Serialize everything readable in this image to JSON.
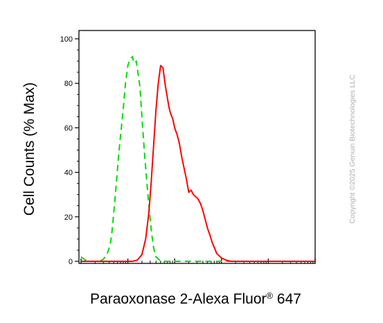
{
  "chart_data": {
    "type": "line",
    "ylabel": "Cell Counts (% Max)",
    "xlabel_main": "Paraoxonase 2-Alexa Fluor",
    "xlabel_sup": "®",
    "xlabel_tail": " 647",
    "ylim": [
      0,
      105
    ],
    "xlim_decades": [
      0,
      5
    ],
    "x_scale": "log (unlabeled)",
    "y_ticks": [
      "0",
      "20",
      "40",
      "60",
      "80",
      "100"
    ],
    "grid": false,
    "series": [
      {
        "color": "#00dd00",
        "style": "dashed",
        "x": [
          0.0,
          0.1,
          0.15,
          0.25,
          0.32,
          0.4,
          0.48,
          0.55,
          0.62,
          0.66,
          0.7,
          0.75,
          0.8,
          0.85,
          0.9,
          0.95,
          1.0,
          1.05,
          1.1,
          1.12,
          1.15,
          1.18,
          1.22,
          1.26,
          1.3,
          1.35,
          1.4,
          1.45,
          1.5,
          1.55,
          1.6,
          1.68,
          1.75,
          1.85,
          2.0,
          2.5,
          5.0
        ],
        "y": [
          2,
          0.5,
          0,
          0,
          0,
          0,
          1,
          3,
          7,
          13,
          22,
          34,
          47,
          58,
          68,
          80,
          88,
          91,
          92,
          90,
          89,
          90,
          84,
          78,
          65,
          50,
          37,
          25,
          14,
          6,
          2,
          0.5,
          0,
          0,
          0,
          0,
          0
        ]
      },
      {
        "color": "#ff0000",
        "style": "solid",
        "x": [
          0.0,
          0.8,
          1.1,
          1.2,
          1.3,
          1.38,
          1.45,
          1.5,
          1.55,
          1.6,
          1.65,
          1.7,
          1.75,
          1.8,
          1.84,
          1.88,
          1.92,
          1.96,
          2.0,
          2.05,
          2.1,
          2.15,
          2.2,
          2.25,
          2.3,
          2.35,
          2.4,
          2.45,
          2.5,
          2.55,
          2.6,
          2.65,
          2.7,
          2.75,
          2.8,
          2.85,
          2.9,
          3.0,
          3.1,
          3.2,
          3.4,
          3.7,
          4.2,
          5.0
        ],
        "y": [
          0,
          0,
          0,
          0.5,
          3,
          10,
          22,
          36,
          52,
          68,
          80,
          88,
          87,
          79,
          74,
          69,
          66,
          64,
          60,
          57,
          53,
          47,
          42,
          37,
          31,
          32,
          30,
          29,
          28,
          26,
          23,
          19,
          15,
          12,
          8.5,
          6,
          3.5,
          1.5,
          0.5,
          0,
          0,
          0,
          0,
          0
        ]
      }
    ]
  },
  "copyright": "Copyright ©2025 Genuin Biotechnologies LLC"
}
